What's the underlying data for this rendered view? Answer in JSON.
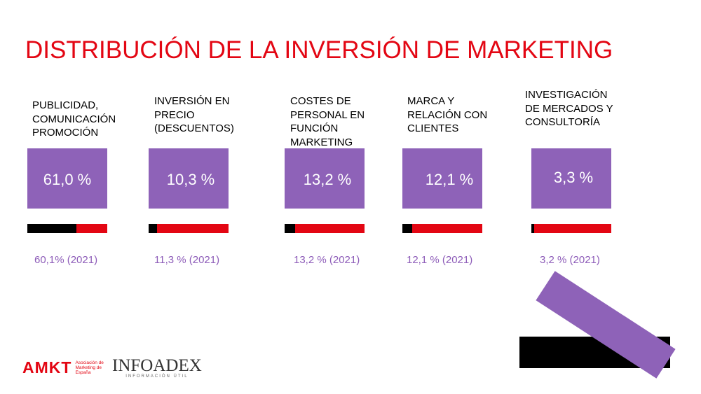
{
  "title": "DISTRIBUCIÓN DE LA INVERSIÓN DE MARKETING",
  "items": [
    {
      "label": "PUBLICIDAD,\nCOMUNICACIÓN\nPROMOCIÓN",
      "pct": "61,0 %",
      "prev": "60,1% (2021)",
      "share": 0.61
    },
    {
      "label": "INVERSIÓN EN\nPRECIO\n(DESCUENTOS)",
      "pct": "10,3 %",
      "prev": "11,3 % (2021)",
      "share": 0.103
    },
    {
      "label": "COSTES DE\nPERSONAL EN\nFUNCIÓN\nMARKETING",
      "pct": "13,2 %",
      "prev": "13,2 % (2021)",
      "share": 0.132
    },
    {
      "label": "MARCA Y\nRELACIÓN CON\nCLIENTES",
      "pct": "12,1 %",
      "prev": "12,1 % (2021)",
      "share": 0.121
    },
    {
      "label": "INVESTIGACIÓN\nDE MERCADOS Y\nCONSULTORÍA",
      "pct": "3,3 %",
      "prev": "3,2 % (2021)",
      "share": 0.033
    }
  ],
  "logos": {
    "amkt_mark": "AMKT",
    "amkt_sub": "Asociación de Marketing de España",
    "infoadex_word": "INFOADEX",
    "infoadex_sub": "INFORMACIÓN ÚTIL"
  },
  "colors": {
    "accent_red": "#e30613",
    "purple": "#8e62b8",
    "bar_black": "#000000"
  }
}
